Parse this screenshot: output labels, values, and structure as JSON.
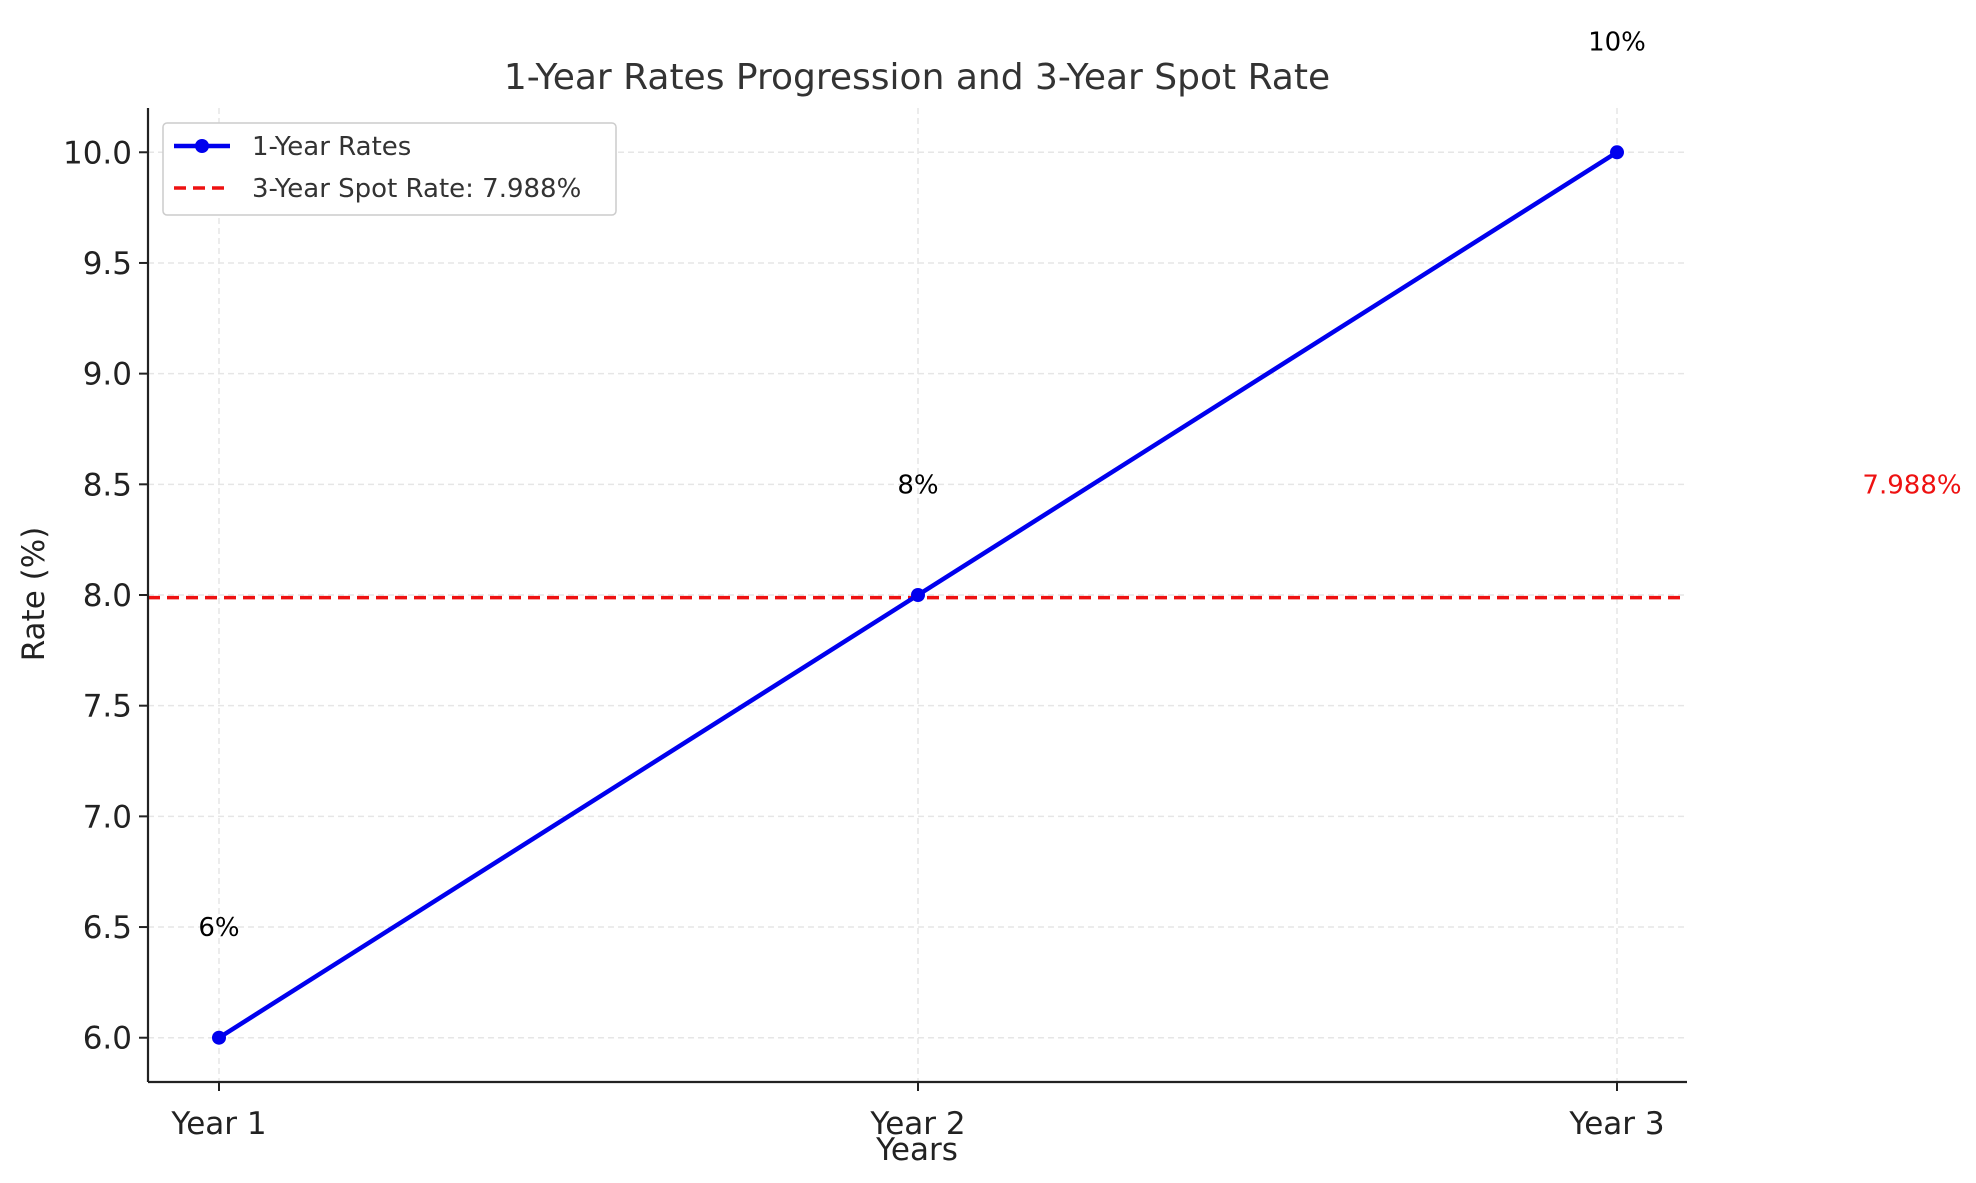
{
  "chart_data": {
    "type": "line",
    "title": "1-Year Rates Progression and 3-Year Spot Rate",
    "xlabel": "Years",
    "ylabel": "Rate (%)",
    "categories": [
      "Year 1",
      "Year 2",
      "Year 3"
    ],
    "ylim": [
      5.8,
      10.2
    ],
    "yticks": [
      6.0,
      6.5,
      7.0,
      7.5,
      8.0,
      8.5,
      9.0,
      9.5,
      10.0
    ],
    "ytick_labels": [
      "6.0",
      "6.5",
      "7.0",
      "7.5",
      "8.0",
      "8.5",
      "9.0",
      "9.5",
      "10.0"
    ],
    "grid": true,
    "legend_position": "top-left",
    "series": [
      {
        "name": "1-Year Rates",
        "values": [
          6,
          8,
          10
        ],
        "color": "#0000ee",
        "marker": "circle",
        "data_labels": [
          "6%",
          "8%",
          "10%"
        ]
      }
    ],
    "reference_line": {
      "name": "3-Year Spot Rate: 7.988%",
      "value": 7.988,
      "color": "#ee1111",
      "style": "dashed",
      "label": "7.988%"
    }
  }
}
